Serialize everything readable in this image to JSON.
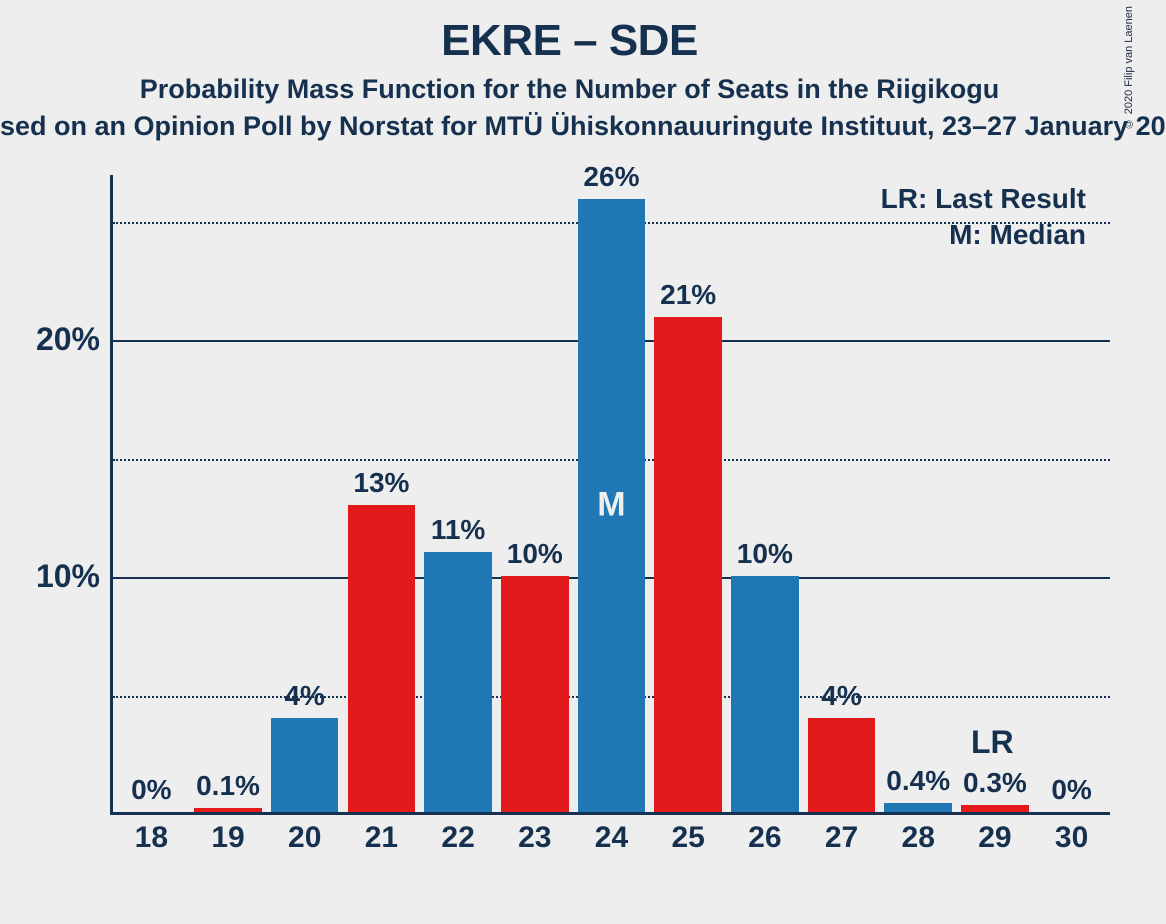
{
  "copyright": "© 2020 Filip van Laenen",
  "title": "EKRE – SDE",
  "subtitle": "Probability Mass Function for the Number of Seats in the Riigikogu",
  "source": "sed on an Opinion Poll by Norstat for MTÜ Ühiskonnauuringute Instituut, 23–27 January 20",
  "legend": {
    "lr": "LR: Last Result",
    "m": "M: Median"
  },
  "chart": {
    "type": "bar",
    "background_color": "#eeeeee",
    "text_color": "#16314f",
    "bar_colors": {
      "blue": "#1f78b4",
      "red": "#e31a1c"
    },
    "ylim": [
      0,
      27
    ],
    "y_ticks_solid": [
      10,
      20
    ],
    "y_ticks_dotted": [
      5,
      15,
      25
    ],
    "y_tick_labels": [
      {
        "v": 10,
        "label": "10%"
      },
      {
        "v": 20,
        "label": "20%"
      }
    ],
    "median_category": 24,
    "median_label": "M",
    "lr_category": 29,
    "lr_label": "LR",
    "categories": [
      18,
      19,
      20,
      21,
      22,
      23,
      24,
      25,
      26,
      27,
      28,
      29,
      30
    ],
    "bars": [
      {
        "x": 18,
        "v": 0.0,
        "label": "0%",
        "color": "blue"
      },
      {
        "x": 19,
        "v": 0.1,
        "label": "0.1%",
        "color": "red"
      },
      {
        "x": 20,
        "v": 4.0,
        "label": "4%",
        "color": "blue"
      },
      {
        "x": 21,
        "v": 13.0,
        "label": "13%",
        "color": "red"
      },
      {
        "x": 22,
        "v": 11.0,
        "label": "11%",
        "color": "blue"
      },
      {
        "x": 23,
        "v": 10.0,
        "label": "10%",
        "color": "red"
      },
      {
        "x": 24,
        "v": 26.0,
        "label": "26%",
        "color": "blue"
      },
      {
        "x": 25,
        "v": 21.0,
        "label": "21%",
        "color": "red"
      },
      {
        "x": 26,
        "v": 10.0,
        "label": "10%",
        "color": "blue"
      },
      {
        "x": 27,
        "v": 4.0,
        "label": "4%",
        "color": "red"
      },
      {
        "x": 28,
        "v": 0.4,
        "label": "0.4%",
        "color": "blue"
      },
      {
        "x": 29,
        "v": 0.3,
        "label": "0.3%",
        "color": "red"
      },
      {
        "x": 30,
        "v": 0.0,
        "label": "0%",
        "color": "blue"
      }
    ]
  }
}
